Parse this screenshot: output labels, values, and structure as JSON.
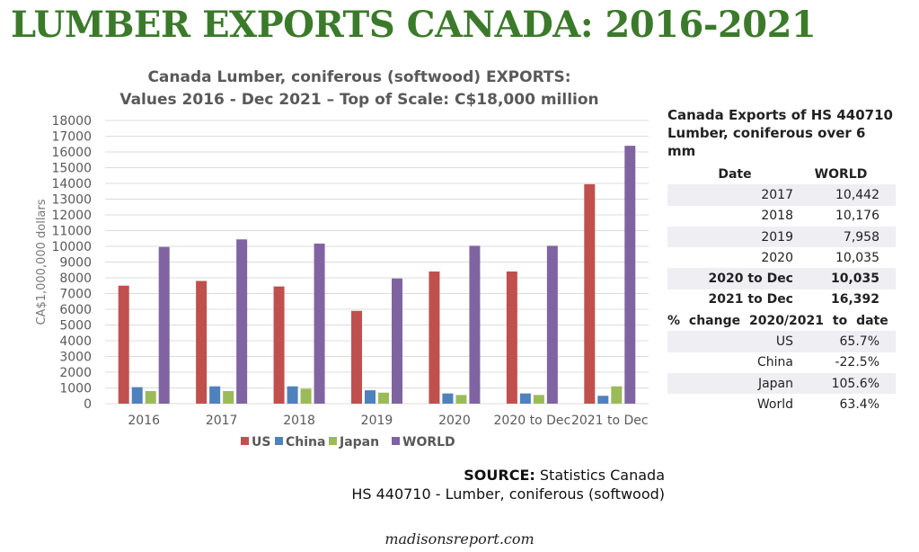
{
  "page_title": "LUMBER EXPORTS CANADA: 2016-2021",
  "chart_data": {
    "type": "bar",
    "title_line1": "Canada Lumber, coniferous (softwood) EXPORTS:",
    "title_line2": "Values 2016 - Dec 2021 – Top of Scale: C$18,000 million",
    "ylabel": "CA$1,000,000 dollars",
    "ylim": [
      0,
      18000
    ],
    "yticks": [
      0,
      1000,
      2000,
      3000,
      4000,
      5000,
      6000,
      7000,
      8000,
      9000,
      10000,
      11000,
      12000,
      13000,
      14000,
      15000,
      16000,
      17000,
      18000
    ],
    "categories": [
      "2016",
      "2017",
      "2018",
      "2019",
      "2020",
      "2020 to Dec",
      "2021 to Dec"
    ],
    "series": [
      {
        "name": "US",
        "color": "#c0504d",
        "values": [
          7500,
          7800,
          7450,
          5900,
          8400,
          8400,
          13950
        ]
      },
      {
        "name": "China",
        "color": "#4f81bd",
        "values": [
          1050,
          1100,
          1100,
          850,
          650,
          650,
          500
        ]
      },
      {
        "name": "Japan",
        "color": "#9bbb59",
        "values": [
          800,
          800,
          950,
          700,
          550,
          550,
          1100
        ]
      },
      {
        "name": "WORLD",
        "color": "#8064a2",
        "values": [
          9960,
          10442,
          10176,
          7958,
          10035,
          10035,
          16392
        ]
      }
    ],
    "legend": "bottom",
    "grid": true
  },
  "table": {
    "title1": "Canada Exports of HS 440710",
    "title2": "Lumber, coniferous over 6 mm",
    "col_date": "Date",
    "col_world": "WORLD",
    "rows": [
      {
        "date": "2017",
        "value": "10,442"
      },
      {
        "date": "2018",
        "value": "10,176"
      },
      {
        "date": "2019",
        "value": "7,958"
      },
      {
        "date": "2020",
        "value": "10,035"
      },
      {
        "date": "2020 to Dec",
        "value": "10,035"
      },
      {
        "date": "2021 to Dec",
        "value": "16,392"
      }
    ],
    "pct_header": "% change 2020/2021 to date",
    "pct_rows": [
      {
        "label": "US",
        "value": "65.7%"
      },
      {
        "label": "China",
        "value": "-22.5%"
      },
      {
        "label": "Japan",
        "value": "105.6%"
      },
      {
        "label": "World",
        "value": "63.4%"
      }
    ]
  },
  "source": {
    "label": "SOURCE:",
    "text": "Statistics Canada",
    "line2": "HS 440710 - Lumber, coniferous (softwood)"
  },
  "footer": "madisonsreport.com"
}
